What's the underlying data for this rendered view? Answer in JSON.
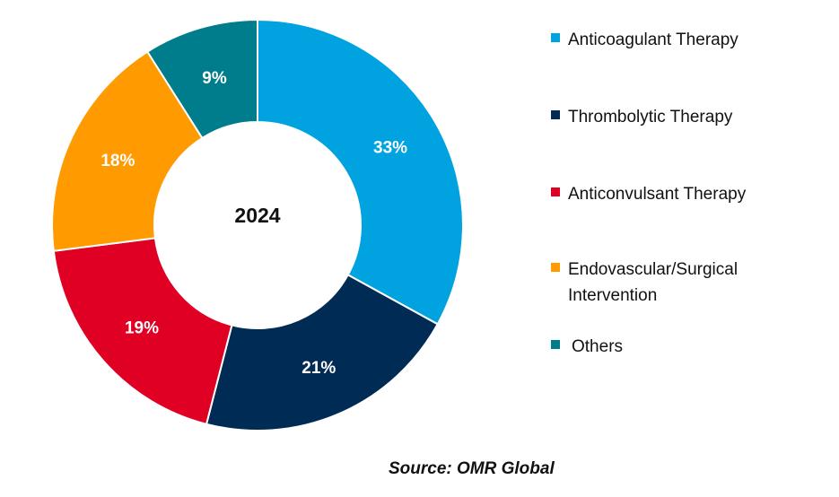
{
  "chart_data": {
    "type": "pie",
    "center_label": "2024",
    "categories": [
      "Anticoagulant Therapy",
      "Thrombolytic Therapy",
      "Anticonvulsant Therapy",
      "Endovascular/Surgical Intervention",
      "Others"
    ],
    "values": [
      33,
      21,
      19,
      18,
      9
    ],
    "data_labels": [
      "33%",
      "21%",
      "19%",
      "18%",
      "9%"
    ],
    "colors": [
      "#00A3E0",
      "#002B54",
      "#E00023",
      "#FF9A00",
      "#007D8C"
    ],
    "legend_position": "right"
  },
  "source": "Source: OMR Global"
}
